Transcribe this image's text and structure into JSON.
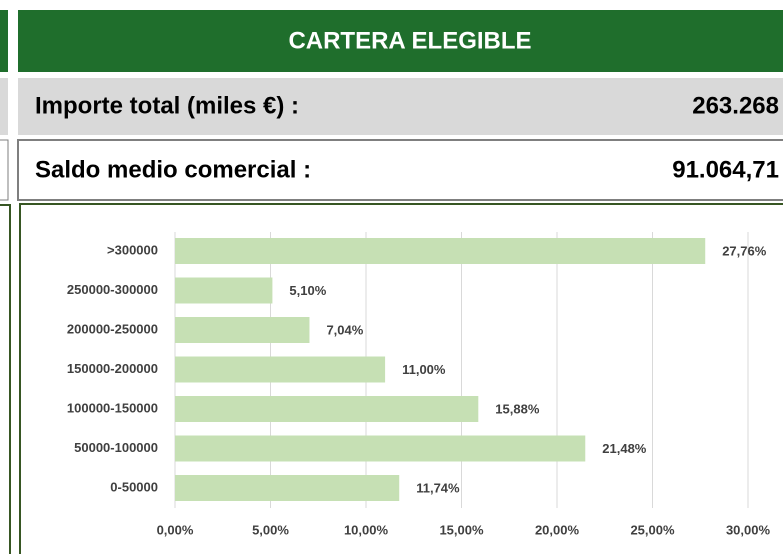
{
  "header": {
    "title": "CARTERA ELEGIBLE",
    "rows": [
      {
        "label": "Importe total (miles €) :",
        "value": "263.268"
      },
      {
        "label": "Saldo medio comercial :",
        "value": "91.064,71"
      }
    ]
  },
  "chart_data": {
    "type": "hbar",
    "categories": [
      ">300000",
      "250000-300000",
      "200000-250000",
      "150000-200000",
      "100000-150000",
      "50000-100000",
      "0-50000"
    ],
    "values": [
      27.76,
      5.1,
      7.04,
      11.0,
      15.88,
      21.48,
      11.74
    ],
    "value_labels": [
      "27,76%",
      "5,10%",
      "7,04%",
      "11,00%",
      "15,88%",
      "21,48%",
      "11,74%"
    ],
    "color": "#c6e0b4",
    "xlim": [
      0,
      30
    ],
    "xticks": [
      {
        "value": 0,
        "label": "0,00%"
      },
      {
        "value": 5,
        "label": "5,00%"
      },
      {
        "value": 10,
        "label": "10,00%"
      },
      {
        "value": 15,
        "label": "15,00%"
      },
      {
        "value": 20,
        "label": "20,00%"
      },
      {
        "value": 25,
        "label": "25,00%"
      },
      {
        "value": 30,
        "label": "30,00%"
      }
    ],
    "grid": true
  }
}
